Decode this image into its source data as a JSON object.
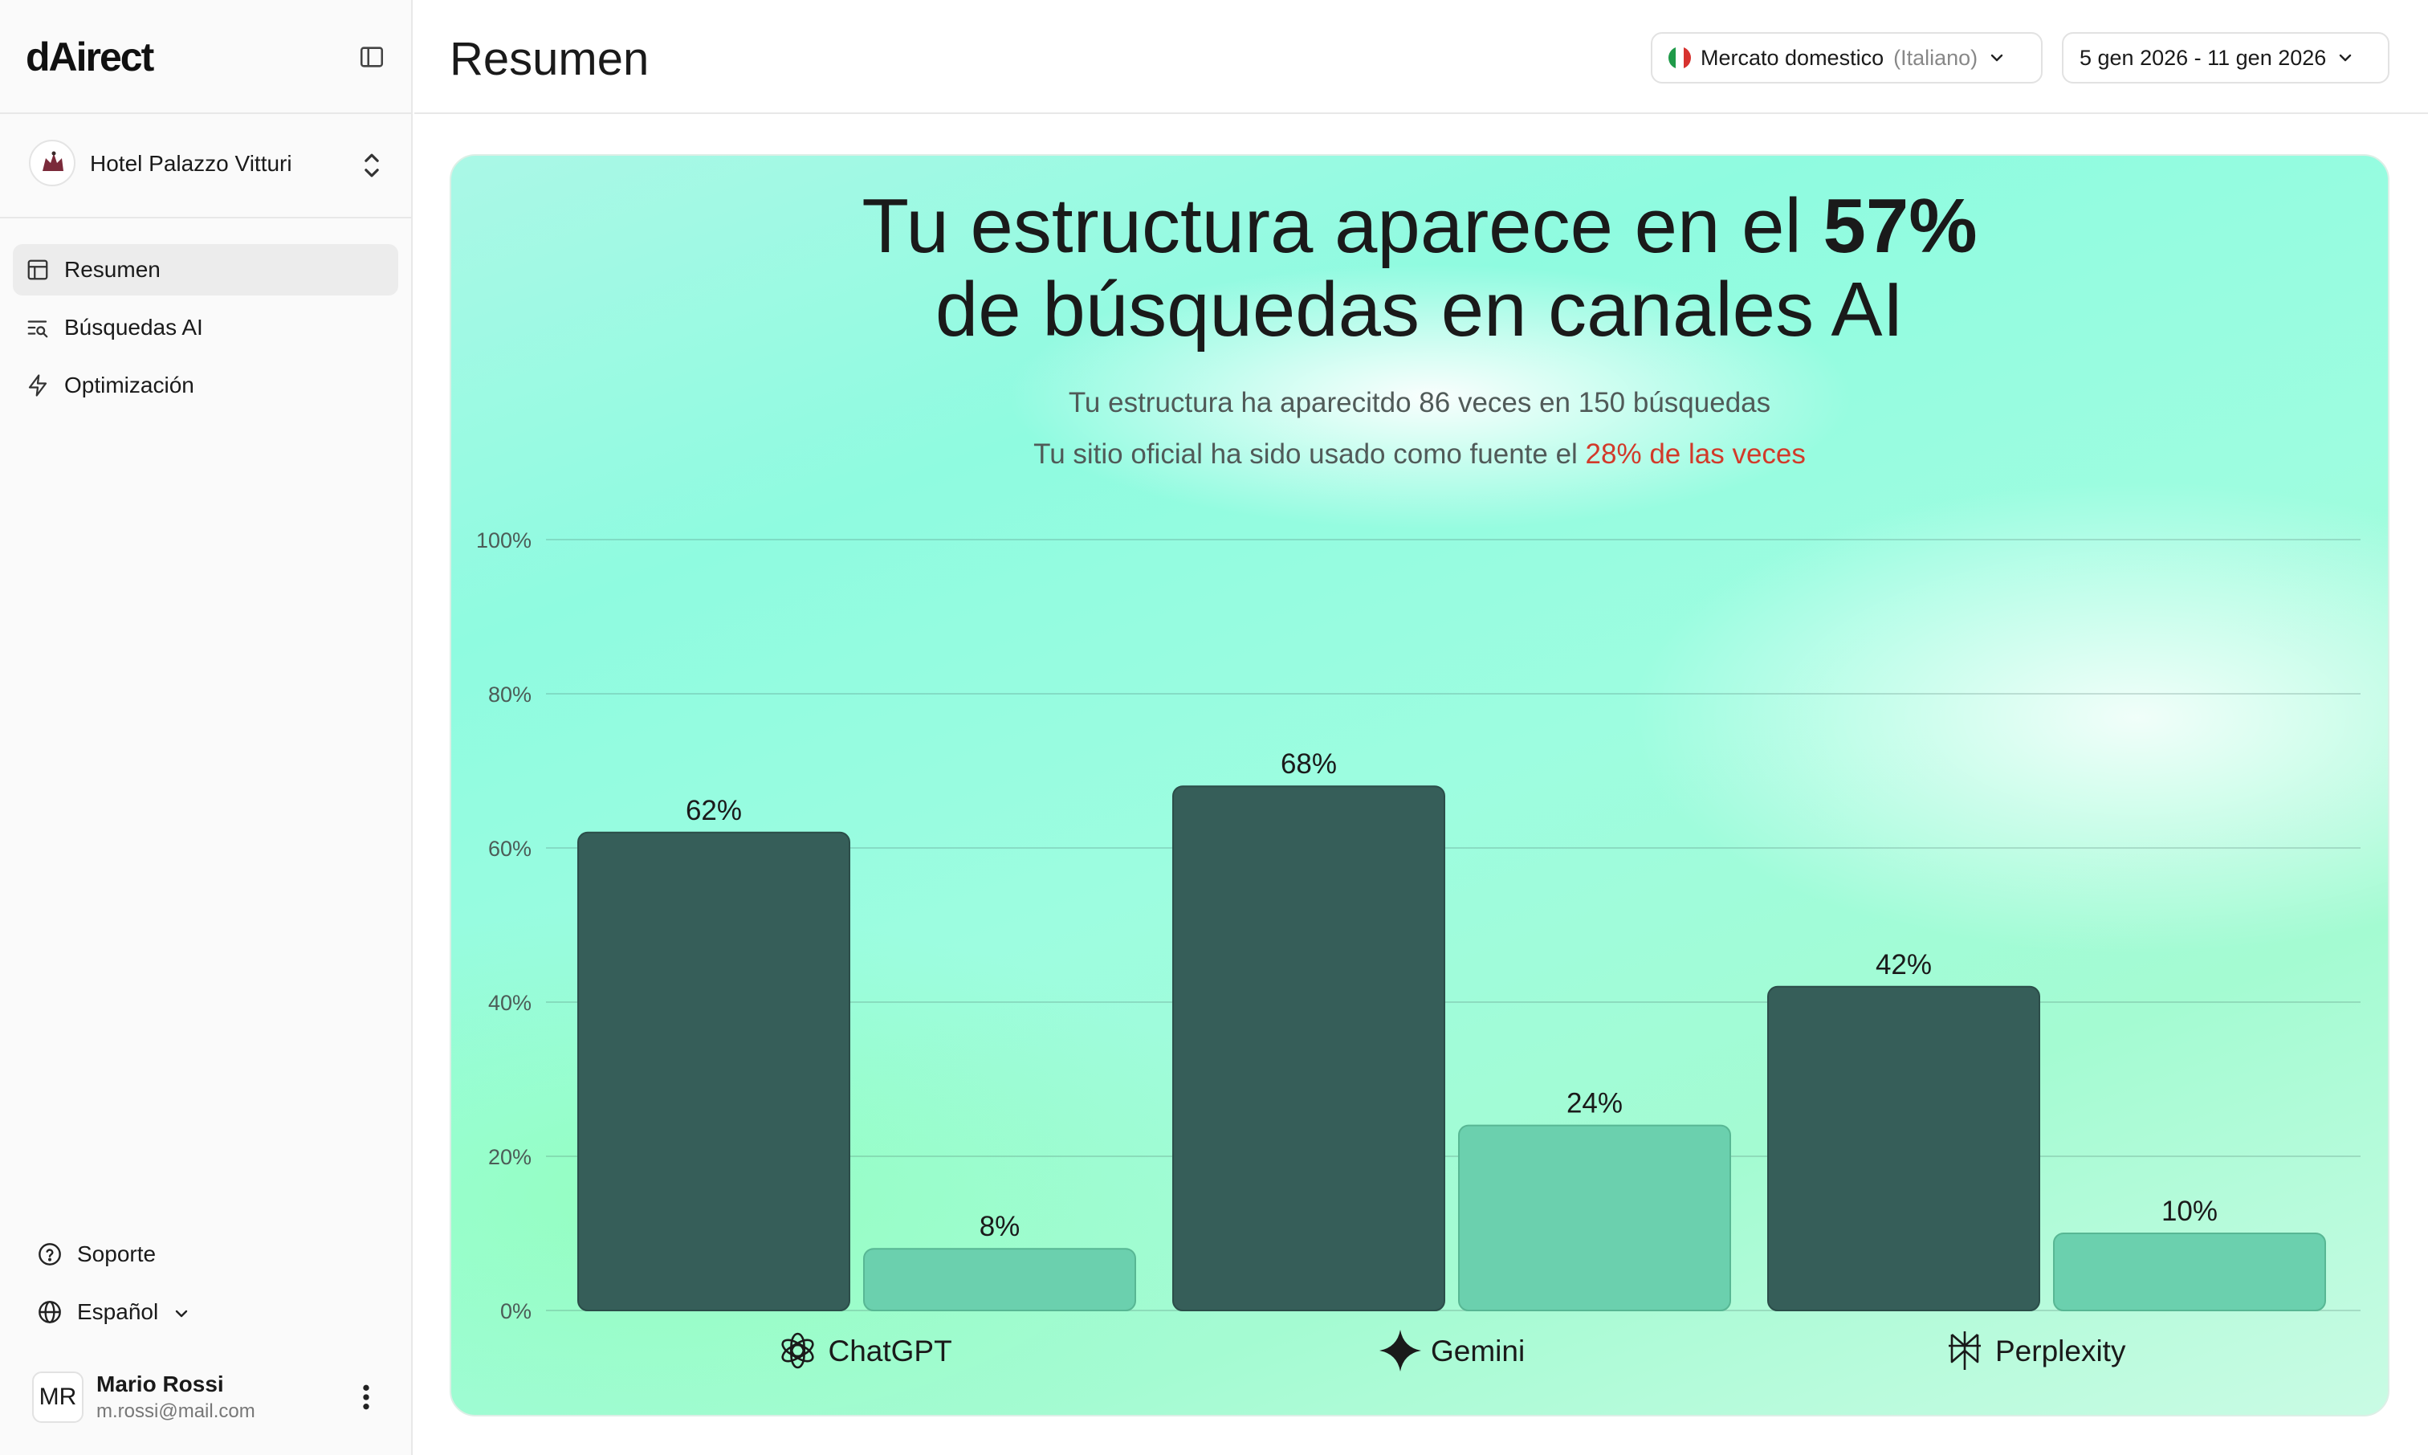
{
  "app": {
    "logo": "dAirect"
  },
  "sidebar": {
    "hotel_name": "Hotel Palazzo Vitturi",
    "items": [
      {
        "label": "Resumen",
        "icon": "layout-icon",
        "active": true
      },
      {
        "label": "Búsquedas AI",
        "icon": "list-search-icon",
        "active": false
      },
      {
        "label": "Optimización",
        "icon": "bolt-icon",
        "active": false
      }
    ],
    "support_label": "Soporte",
    "language_label": "Español",
    "user": {
      "initials": "MR",
      "name": "Mario Rossi",
      "email": "m.rossi@mail.com"
    }
  },
  "header": {
    "title": "Resumen",
    "market": {
      "label": "Mercato domestico",
      "language": "(Italiano)"
    },
    "date_range": "5 gen 2026 - 11 gen 2026"
  },
  "summary": {
    "headline_part1": "Tu estructura aparece en el ",
    "headline_pct": "57%",
    "headline_line2": "de búsquedas en canales AI",
    "subtitle1": "Tu estructura ha aparecitdo 86 veces en 150 búsquedas",
    "subtitle2_prefix": "Tu sitio oficial ha sido usado como fuente el ",
    "subtitle2_highlight": "28% de las veces"
  },
  "colors": {
    "dark_bar": "#365e59",
    "light_bar": "#6bd0ae",
    "highlight": "#d23a2a"
  },
  "chart_data": {
    "type": "bar",
    "categories": [
      "ChatGPT",
      "Gemini",
      "Perplexity"
    ],
    "category_icons": [
      "openai-icon",
      "gemini-sparkle-icon",
      "perplexity-icon"
    ],
    "series": [
      {
        "values": [
          62,
          68,
          42
        ],
        "color": "#365e59"
      },
      {
        "values": [
          8,
          24,
          10
        ],
        "color": "#6bd0ae"
      }
    ],
    "value_labels": [
      [
        "62%",
        "68%",
        "42%"
      ],
      [
        "8%",
        "24%",
        "10%"
      ]
    ],
    "yticks": [
      "0%",
      "20%",
      "40%",
      "60%",
      "80%",
      "100%"
    ],
    "ylim": [
      0,
      100
    ],
    "grid": true
  }
}
